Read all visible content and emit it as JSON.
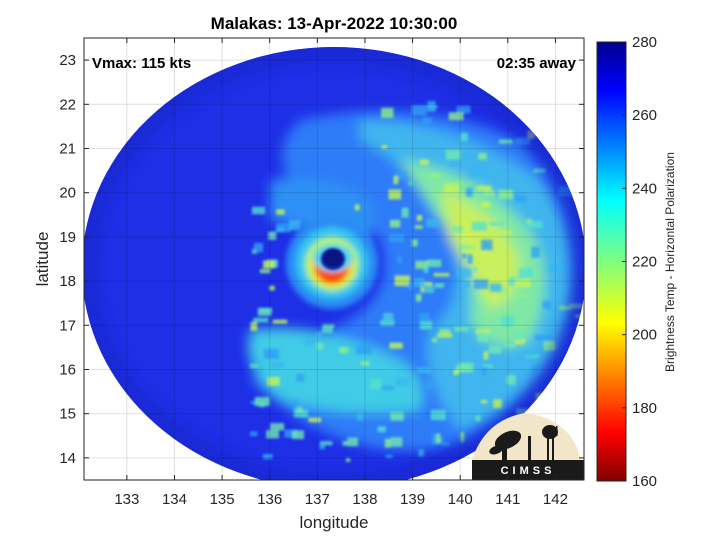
{
  "chart_data": {
    "type": "heatmap",
    "title": "Malakas: 13-Apr-2022 10:30:00",
    "xlabel": "longitude",
    "ylabel": "latitude",
    "xlim": [
      132.1,
      142.6
    ],
    "ylim": [
      13.5,
      23.5
    ],
    "xticks": [
      133,
      134,
      135,
      136,
      137,
      138,
      139,
      140,
      141,
      142
    ],
    "yticks": [
      14,
      15,
      16,
      17,
      18,
      19,
      20,
      21,
      22,
      23
    ],
    "grid": true,
    "colorbar": {
      "label": "Brightness Temp - Horizontal Polarization",
      "range": [
        160,
        280
      ],
      "ticks": [
        160,
        180,
        200,
        220,
        240,
        260,
        280
      ],
      "colormap": "jet"
    },
    "annotations": {
      "vmax": "Vmax: 115 kts",
      "time_offset": "02:35 away"
    },
    "storm_center": {
      "lon": 137.05,
      "lat": 18.5
    },
    "eyewall_min_temp": 175,
    "eye_temp": 262,
    "background_temp": 265
  },
  "logo": {
    "text": "CIMSS"
  }
}
